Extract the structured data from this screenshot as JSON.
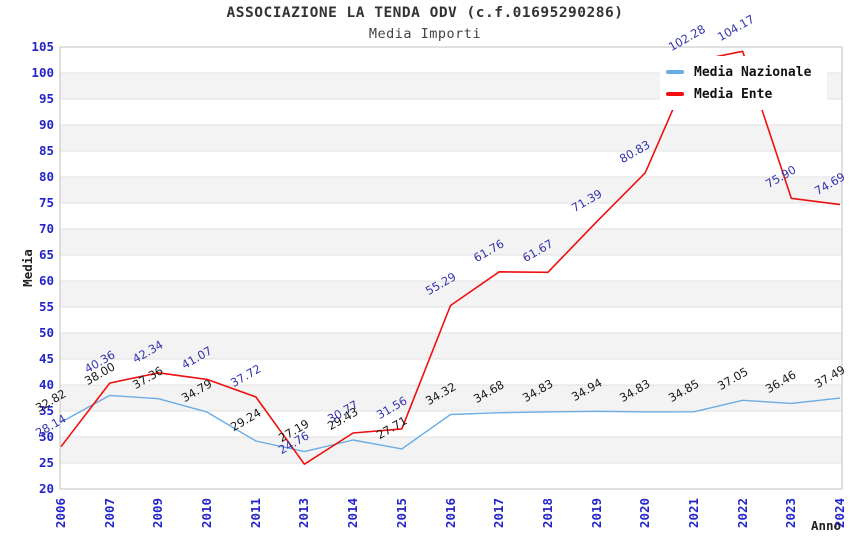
{
  "header": {
    "title": "ASSOCIAZIONE LA TENDA ODV (c.f.01695290286)",
    "subtitle": "Media Importi"
  },
  "style": {
    "tick_color": "#2424cc",
    "band_gray": "#f3f3f3",
    "band_white": "#ffffff",
    "grid_color": "#e1e1e1",
    "border_color": "#c0c0c0"
  },
  "chart_data": {
    "type": "line",
    "title": "ASSOCIAZIONE LA TENDA ODV (c.f.01695290286)",
    "subtitle": "Media Importi",
    "xlabel": "Anno",
    "ylabel": "Media",
    "ylim": [
      20,
      105
    ],
    "ytick_step": 5,
    "grid": "horizontal-bands-alternating",
    "legend_position": "top-right",
    "categories": [
      "2006",
      "2007",
      "2009",
      "2010",
      "2011",
      "2013",
      "2014",
      "2015",
      "2016",
      "2017",
      "2018",
      "2019",
      "2020",
      "2021",
      "2022",
      "2023",
      "2024"
    ],
    "series": [
      {
        "name": "Media Nazionale",
        "color": "#6bade3",
        "label_color": "#1a1a1a",
        "values": [
          32.82,
          38.0,
          37.36,
          34.79,
          29.24,
          27.19,
          29.43,
          27.71,
          34.32,
          34.68,
          34.83,
          34.94,
          34.83,
          34.85,
          37.05,
          36.46,
          37.49
        ]
      },
      {
        "name": "Media Ente",
        "color": "#ef1010",
        "label_color": "#3434aa",
        "values": [
          28.14,
          40.36,
          42.34,
          41.07,
          37.72,
          24.76,
          30.77,
          31.56,
          55.29,
          61.76,
          61.67,
          71.39,
          80.83,
          102.28,
          104.17,
          75.9,
          74.69
        ]
      }
    ]
  }
}
